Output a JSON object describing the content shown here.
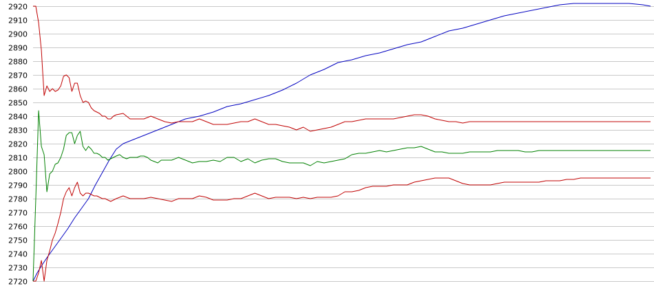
{
  "chart_data": {
    "type": "line",
    "title": "",
    "xlabel": "",
    "ylabel": "",
    "ylim": [
      2720,
      2920
    ],
    "yticks": [
      2720,
      2730,
      2740,
      2750,
      2760,
      2770,
      2780,
      2790,
      2800,
      2810,
      2820,
      2830,
      2840,
      2850,
      2860,
      2870,
      2880,
      2890,
      2900,
      2910,
      2920
    ],
    "grid": true,
    "legend": "none",
    "series": [
      {
        "color": "#0000c0",
        "x": [
          0,
          6,
          12,
          20,
          30,
          40,
          50,
          60,
          70,
          80,
          90,
          100,
          110,
          120,
          130,
          140,
          150,
          160,
          180,
          200,
          220,
          240,
          260,
          280,
          300,
          320,
          340,
          360,
          380,
          400,
          420,
          440,
          460,
          480,
          500,
          520,
          540,
          560,
          580,
          600,
          620,
          640,
          660,
          680,
          700,
          720,
          740,
          760,
          780,
          800,
          820,
          840,
          860,
          880,
          891
        ],
        "values": [
          2720,
          2726,
          2731,
          2737,
          2744,
          2751,
          2758,
          2766,
          2773,
          2780,
          2790,
          2799,
          2808,
          2816,
          2820,
          2822,
          2824,
          2826,
          2830,
          2834,
          2838,
          2840,
          2843,
          2847,
          2849,
          2852,
          2855,
          2859,
          2864,
          2870,
          2874,
          2879,
          2881,
          2884,
          2886,
          2889,
          2892,
          2894,
          2898,
          2902,
          2904,
          2907,
          2910,
          2913,
          2915,
          2917,
          2919,
          2921,
          2922,
          2922,
          2922,
          2922,
          2922,
          2921,
          2920
        ]
      },
      {
        "color": "#008000",
        "x": [
          0,
          4,
          8,
          12,
          16,
          20,
          24,
          28,
          32,
          36,
          40,
          44,
          48,
          52,
          56,
          60,
          64,
          68,
          72,
          76,
          80,
          84,
          88,
          92,
          96,
          100,
          104,
          108,
          112,
          116,
          120,
          125,
          130,
          135,
          140,
          145,
          150,
          155,
          160,
          165,
          170,
          175,
          180,
          185,
          190,
          195,
          200,
          210,
          220,
          230,
          240,
          250,
          260,
          270,
          280,
          290,
          300,
          310,
          320,
          330,
          340,
          350,
          360,
          370,
          380,
          390,
          400,
          410,
          420,
          430,
          440,
          450,
          460,
          470,
          480,
          490,
          500,
          510,
          520,
          530,
          540,
          550,
          560,
          570,
          580,
          590,
          600,
          610,
          620,
          630,
          640,
          650,
          660,
          670,
          680,
          690,
          700,
          710,
          720,
          730,
          740,
          750,
          760,
          770,
          780,
          790,
          800,
          810,
          820,
          830,
          840,
          850,
          860,
          870,
          880,
          891
        ],
        "values": [
          2720,
          2780,
          2844,
          2818,
          2812,
          2785,
          2798,
          2800,
          2805,
          2806,
          2810,
          2816,
          2826,
          2828,
          2828,
          2820,
          2826,
          2829,
          2818,
          2815,
          2818,
          2816,
          2813,
          2813,
          2812,
          2810,
          2810,
          2808,
          2809,
          2810,
          2811,
          2812,
          2810,
          2809,
          2810,
          2810,
          2810,
          2811,
          2811,
          2810,
          2808,
          2807,
          2806,
          2808,
          2808,
          2808,
          2808,
          2810,
          2808,
          2806,
          2807,
          2807,
          2808,
          2807,
          2810,
          2810,
          2807,
          2809,
          2806,
          2808,
          2809,
          2809,
          2807,
          2806,
          2806,
          2806,
          2804,
          2807,
          2806,
          2807,
          2808,
          2809,
          2812,
          2813,
          2813,
          2814,
          2815,
          2814,
          2815,
          2816,
          2817,
          2817,
          2818,
          2816,
          2814,
          2814,
          2813,
          2813,
          2813,
          2814,
          2814,
          2814,
          2814,
          2815,
          2815,
          2815,
          2815,
          2814,
          2814,
          2815,
          2815,
          2815,
          2815,
          2815,
          2815,
          2815,
          2815,
          2815,
          2815,
          2815,
          2815,
          2815,
          2815,
          2815,
          2815,
          2815
        ]
      },
      {
        "color": "#c00000",
        "x": [
          0,
          4,
          8,
          12,
          16,
          20,
          24,
          28,
          32,
          36,
          40,
          44,
          48,
          52,
          56,
          60,
          64,
          68,
          72,
          76,
          80,
          84,
          88,
          92,
          96,
          100,
          104,
          108,
          112,
          116,
          120,
          130,
          140,
          150,
          160,
          170,
          180,
          190,
          200,
          210,
          220,
          230,
          240,
          250,
          260,
          270,
          280,
          290,
          300,
          310,
          320,
          330,
          340,
          350,
          360,
          370,
          380,
          390,
          400,
          410,
          420,
          430,
          440,
          450,
          460,
          470,
          480,
          490,
          500,
          510,
          520,
          530,
          540,
          550,
          560,
          570,
          580,
          590,
          600,
          610,
          620,
          630,
          640,
          650,
          660,
          670,
          680,
          690,
          700,
          710,
          720,
          730,
          740,
          750,
          760,
          770,
          780,
          790,
          800,
          810,
          820,
          830,
          840,
          850,
          860,
          870,
          880,
          891
        ],
        "values": [
          2920,
          2920,
          2908,
          2888,
          2855,
          2862,
          2858,
          2860,
          2858,
          2859,
          2862,
          2869,
          2870,
          2868,
          2858,
          2864,
          2864,
          2855,
          2850,
          2851,
          2850,
          2846,
          2844,
          2843,
          2842,
          2840,
          2840,
          2838,
          2838,
          2840,
          2841,
          2842,
          2838,
          2838,
          2838,
          2840,
          2838,
          2836,
          2835,
          2836,
          2836,
          2836,
          2838,
          2836,
          2834,
          2834,
          2834,
          2835,
          2836,
          2836,
          2838,
          2836,
          2834,
          2834,
          2833,
          2832,
          2830,
          2832,
          2829,
          2830,
          2831,
          2832,
          2834,
          2836,
          2836,
          2837,
          2838,
          2838,
          2838,
          2838,
          2838,
          2839,
          2840,
          2841,
          2841,
          2840,
          2838,
          2837,
          2836,
          2836,
          2835,
          2836,
          2836,
          2836,
          2836,
          2836,
          2836,
          2836,
          2836,
          2836,
          2836,
          2836,
          2836,
          2836,
          2836,
          2836,
          2836,
          2836,
          2836,
          2836,
          2836,
          2836,
          2836,
          2836,
          2836,
          2836,
          2836,
          2836
        ]
      },
      {
        "color": "#c00000",
        "x": [
          0,
          4,
          8,
          12,
          16,
          20,
          24,
          28,
          32,
          36,
          40,
          44,
          48,
          52,
          56,
          60,
          64,
          68,
          72,
          76,
          80,
          84,
          88,
          92,
          96,
          100,
          104,
          108,
          112,
          116,
          120,
          130,
          140,
          150,
          160,
          170,
          180,
          190,
          200,
          210,
          220,
          230,
          240,
          250,
          260,
          270,
          280,
          290,
          300,
          310,
          320,
          330,
          340,
          350,
          360,
          370,
          380,
          390,
          400,
          410,
          420,
          430,
          440,
          450,
          460,
          470,
          480,
          490,
          500,
          510,
          520,
          530,
          540,
          550,
          560,
          570,
          580,
          590,
          600,
          610,
          620,
          630,
          640,
          650,
          660,
          670,
          680,
          690,
          700,
          710,
          720,
          730,
          740,
          750,
          760,
          770,
          780,
          790,
          800,
          810,
          820,
          830,
          840,
          850,
          860,
          870,
          880,
          891
        ],
        "values": [
          2720,
          2720,
          2726,
          2735,
          2720,
          2735,
          2742,
          2750,
          2755,
          2762,
          2770,
          2780,
          2785,
          2788,
          2782,
          2788,
          2792,
          2784,
          2782,
          2784,
          2784,
          2783,
          2782,
          2782,
          2781,
          2780,
          2780,
          2779,
          2778,
          2779,
          2780,
          2782,
          2780,
          2780,
          2780,
          2781,
          2780,
          2779,
          2778,
          2780,
          2780,
          2780,
          2782,
          2781,
          2779,
          2779,
          2779,
          2780,
          2780,
          2782,
          2784,
          2782,
          2780,
          2781,
          2781,
          2781,
          2780,
          2781,
          2780,
          2781,
          2781,
          2781,
          2782,
          2785,
          2785,
          2786,
          2788,
          2789,
          2789,
          2789,
          2790,
          2790,
          2790,
          2792,
          2793,
          2794,
          2795,
          2795,
          2795,
          2793,
          2791,
          2790,
          2790,
          2790,
          2790,
          2791,
          2792,
          2792,
          2792,
          2792,
          2792,
          2792,
          2793,
          2793,
          2793,
          2794,
          2794,
          2795,
          2795,
          2795,
          2795,
          2795,
          2795,
          2795,
          2795,
          2795,
          2795,
          2795
        ]
      }
    ]
  }
}
